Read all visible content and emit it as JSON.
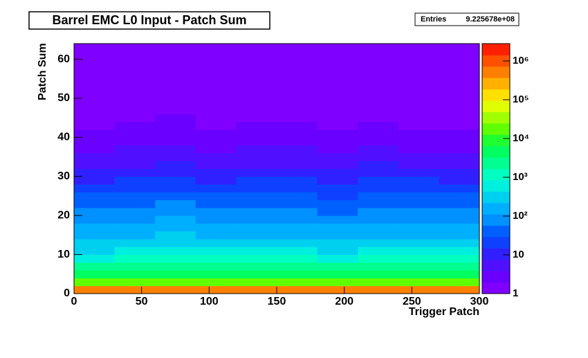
{
  "chart_data": {
    "type": "heatmap",
    "title": "Barrel EMC L0 Input - Patch Sum",
    "stats": {
      "label": "Entries",
      "entries": "9.225678e+08"
    },
    "x_label": "Trigger Patch",
    "y_label": "Patch Sum",
    "xlim": [
      0,
      300
    ],
    "ylim": [
      0,
      64
    ],
    "xticks": [
      0,
      50,
      100,
      150,
      200,
      250,
      300
    ],
    "yticks": [
      0,
      10,
      20,
      30,
      40,
      50,
      60
    ],
    "zlim": [
      1,
      2800000
    ],
    "log_z": true,
    "zticks": [
      1,
      10,
      {
        "value": 100,
        "label": "10²"
      },
      {
        "value": 1000,
        "label": "10³"
      },
      {
        "value": 10000,
        "label": "10⁴"
      },
      {
        "value": 100000,
        "label": "10⁵"
      },
      {
        "value": 1000000,
        "label": "10⁶"
      }
    ],
    "palette": [
      "#8000ff",
      "#6a00ff",
      "#5010ff",
      "#3020ff",
      "#1040ff",
      "#0060ff",
      "#0090ff",
      "#00b0ff",
      "#00d0f0",
      "#00f0e0",
      "#00ffc0",
      "#00ff90",
      "#00ff60",
      "#20ff30",
      "#60ff00",
      "#a0ff00",
      "#e0ff00",
      "#ffe000",
      "#ffb000",
      "#ff8000",
      "#ff5000",
      "#ff2000"
    ],
    "xbins": [
      0,
      30,
      60,
      90,
      120,
      150,
      180,
      210,
      240,
      270,
      300
    ],
    "ybins": [
      0,
      2,
      4,
      6,
      8,
      10,
      12,
      14,
      16,
      18,
      20,
      22,
      24,
      26,
      28,
      30,
      32,
      34,
      36,
      38,
      40,
      42,
      44,
      46,
      48,
      50,
      52,
      54,
      56,
      58,
      60,
      62,
      64
    ],
    "z": [
      [
        420000,
        510000,
        560000,
        480000,
        530000,
        500000,
        450000,
        540000,
        490000,
        470000
      ],
      [
        18000,
        21000,
        24000,
        19000,
        22000,
        20000,
        17000,
        23000,
        20000,
        19000
      ],
      [
        4500,
        5200,
        5800,
        4700,
        5400,
        5000,
        4300,
        5600,
        4900,
        4800
      ],
      [
        1800,
        2100,
        2300,
        1900,
        2200,
        2000,
        1700,
        2200,
        2000,
        1900
      ],
      [
        850,
        1000,
        1150,
        900,
        1050,
        1000,
        820,
        1100,
        950,
        920
      ],
      [
        420,
        500,
        580,
        460,
        520,
        500,
        410,
        560,
        480,
        460
      ],
      [
        260,
        300,
        350,
        270,
        320,
        300,
        250,
        340,
        290,
        280
      ],
      [
        170,
        200,
        230,
        180,
        210,
        200,
        160,
        220,
        190,
        180
      ],
      [
        125,
        150,
        175,
        135,
        160,
        150,
        120,
        165,
        145,
        140
      ],
      [
        85,
        100,
        115,
        90,
        105,
        100,
        80,
        110,
        95,
        90
      ],
      [
        60,
        70,
        80,
        62,
        74,
        70,
        56,
        78,
        66,
        64
      ],
      [
        42,
        50,
        58,
        45,
        52,
        50,
        40,
        55,
        48,
        46
      ],
      [
        30,
        35,
        40,
        32,
        37,
        35,
        28,
        38,
        34,
        33
      ],
      [
        21,
        25,
        29,
        22,
        26,
        25,
        20,
        27,
        24,
        23
      ],
      [
        13,
        15,
        17,
        14,
        16,
        15,
        12,
        16,
        15,
        14
      ],
      [
        8.5,
        10,
        11.5,
        9,
        10.5,
        10,
        8,
        11,
        9.5,
        9
      ],
      [
        6,
        7,
        8,
        6.3,
        7.4,
        7,
        5.6,
        7.8,
        6.6,
        6.4
      ],
      [
        4.2,
        5,
        5.8,
        4.5,
        5.2,
        5,
        4,
        5.5,
        4.8,
        4.6
      ],
      [
        3.4,
        4,
        4.6,
        3.6,
        4.2,
        4,
        3.2,
        4.4,
        3.8,
        3.7
      ],
      [
        2.6,
        3,
        3.4,
        2.7,
        3.1,
        3,
        2.4,
        3.3,
        2.9,
        2.8
      ],
      [
        2.2,
        2.5,
        2.8,
        2.3,
        2.6,
        2.5,
        2,
        2.7,
        2.4,
        2.3
      ],
      [
        1.8,
        2,
        2.2,
        1.9,
        2.1,
        2,
        1.7,
        2.2,
        1.9,
        1.9
      ],
      [
        1.6,
        1.8,
        2,
        1.7,
        1.9,
        1.8,
        1.5,
        1.9,
        1.7,
        1.7
      ],
      [
        1.4,
        1.5,
        1.7,
        1.4,
        1.6,
        1.5,
        1.3,
        1.6,
        1.5,
        1.4
      ],
      [
        1.2,
        1.3,
        1.4,
        1.2,
        1.3,
        1.3,
        1.1,
        1.4,
        1.3,
        1.2
      ],
      [
        1.1,
        1.2,
        1.3,
        1.1,
        1.2,
        1.2,
        1.1,
        1.2,
        1.2,
        1.1
      ],
      [
        1,
        1.1,
        1.2,
        1,
        1.1,
        1.1,
        1,
        1.1,
        1.1,
        1
      ],
      [
        1,
        1,
        1.1,
        1,
        1.1,
        1,
        1,
        1.1,
        1,
        1
      ],
      [
        1,
        1,
        1.1,
        1,
        1,
        1,
        1,
        1,
        1,
        1
      ],
      [
        1,
        1,
        1,
        1,
        1,
        1,
        1,
        1,
        1,
        1
      ],
      [
        1,
        1,
        1,
        1,
        1,
        1,
        1,
        1,
        1,
        1
      ],
      [
        1.5,
        1.5,
        1.6,
        1.5,
        1.5,
        1.5,
        1.4,
        1.6,
        1.5,
        1.5
      ]
    ]
  }
}
